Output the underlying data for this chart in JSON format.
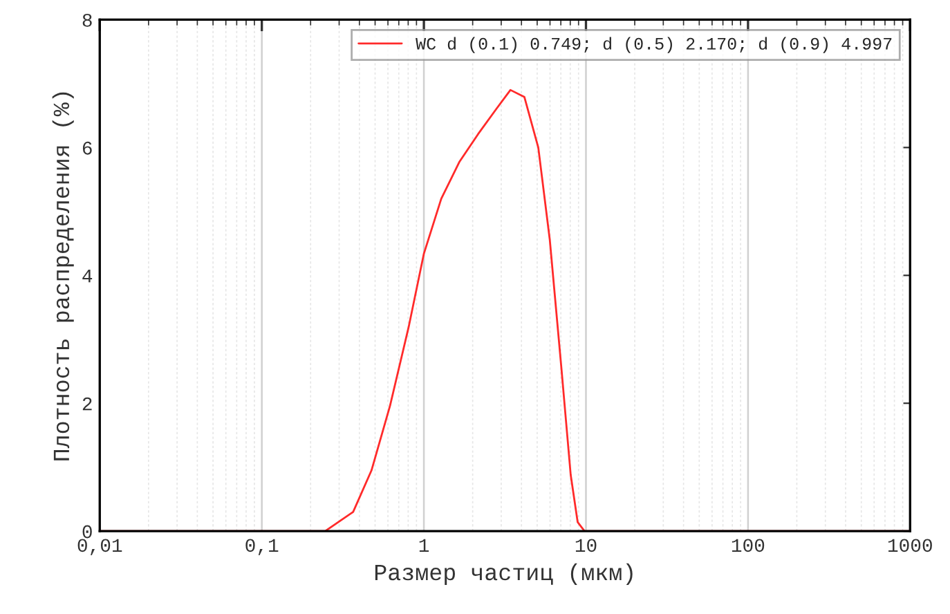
{
  "chart_data": {
    "type": "line",
    "xlabel": "Размер частиц (мкм)",
    "ylabel": "Плотность распределения (%)",
    "log": "x",
    "xlim": [
      0.01,
      1000
    ],
    "xticks": [
      {
        "value": 0.01,
        "label": "0,01"
      },
      {
        "value": 0.1,
        "label": "0,1"
      },
      1,
      10,
      100,
      1000
    ],
    "ylim": [
      0,
      8
    ],
    "yticks": [
      0,
      2,
      4,
      6,
      8
    ],
    "grid": "x",
    "legend": "top right",
    "marker": "none",
    "line_style": "solid",
    "series": [
      {
        "name": "WC d (0.1) 0.749; d (0.5) 2.170; d (0.9) 4.997",
        "color": "#ff2a2a",
        "x": [
          0.01,
          0.05,
          0.246,
          0.366,
          0.475,
          0.618,
          0.805,
          1,
          1.28,
          1.66,
          2.16,
          2.81,
          3.42,
          4.17,
          5.08,
          5.98,
          7.06,
          8.05,
          8.89,
          9.8,
          100,
          1000
        ],
        "values": [
          0,
          0,
          0,
          0.3,
          0.95,
          1.96,
          3.19,
          4.34,
          5.2,
          5.78,
          6.21,
          6.61,
          6.9,
          6.79,
          6.0,
          4.56,
          2.54,
          0.88,
          0.14,
          0,
          0,
          0
        ]
      }
    ]
  }
}
